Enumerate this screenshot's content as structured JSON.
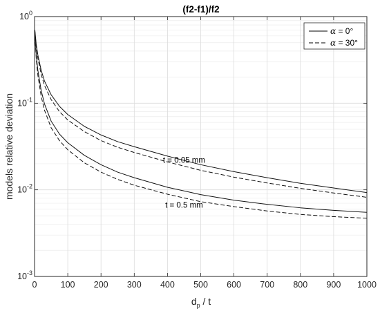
{
  "chart_data": {
    "type": "line",
    "title": "(f2-f1)/f2",
    "xlabel": {
      "main": "d",
      "sub": "p",
      "rest": " / t"
    },
    "ylabel": "models relative deviation",
    "xlim": [
      0,
      1000
    ],
    "ylim": [
      0.001,
      1
    ],
    "yscale": "log",
    "grid": true,
    "minor_grid_y": true,
    "x_ticks": [
      0,
      100,
      200,
      300,
      400,
      500,
      600,
      700,
      800,
      900,
      1000
    ],
    "y_ticks": [
      {
        "value": 1,
        "base": "10",
        "exp": "0"
      },
      {
        "value": 0.1,
        "base": "10",
        "exp": "-1"
      },
      {
        "value": 0.01,
        "base": "10",
        "exp": "-2"
      },
      {
        "value": 0.001,
        "base": "10",
        "exp": "-3"
      }
    ],
    "legend": {
      "location": "top-right",
      "entries": [
        {
          "symbol": "α",
          "text": " = 0°",
          "style": "solid"
        },
        {
          "symbol": "α",
          "text": " = 30°",
          "style": "dashed"
        }
      ]
    },
    "annotations": [
      {
        "text": "t = 0.05 mm",
        "x": 450,
        "y": 0.0205
      },
      {
        "text": "t = 0.5 mm",
        "x": 450,
        "y": 0.0062
      }
    ],
    "series": [
      {
        "group": "t = 0.05 mm",
        "alpha": "α = 0°",
        "style": "solid",
        "x": [
          1,
          5,
          10,
          20,
          30,
          50,
          75,
          100,
          150,
          200,
          250,
          300,
          400,
          500,
          600,
          700,
          800,
          900,
          1000
        ],
        "y": [
          0.7,
          0.48,
          0.36,
          0.24,
          0.18,
          0.125,
          0.092,
          0.074,
          0.054,
          0.043,
          0.036,
          0.0315,
          0.0245,
          0.0195,
          0.0162,
          0.0138,
          0.0119,
          0.0105,
          0.0093
        ]
      },
      {
        "group": "t = 0.05 mm",
        "alpha": "α = 30°",
        "style": "dashed",
        "x": [
          1,
          5,
          10,
          20,
          30,
          50,
          75,
          100,
          150,
          200,
          250,
          300,
          400,
          500,
          600,
          700,
          800,
          900,
          1000
        ],
        "y": [
          0.68,
          0.45,
          0.33,
          0.215,
          0.16,
          0.11,
          0.08,
          0.064,
          0.047,
          0.037,
          0.031,
          0.027,
          0.021,
          0.0168,
          0.014,
          0.012,
          0.0104,
          0.0092,
          0.0082
        ]
      },
      {
        "group": "t = 0.5 mm",
        "alpha": "α = 0°",
        "style": "solid",
        "x": [
          1,
          5,
          10,
          20,
          30,
          50,
          75,
          100,
          150,
          200,
          250,
          300,
          400,
          500,
          600,
          700,
          800,
          900,
          1000
        ],
        "y": [
          0.62,
          0.36,
          0.24,
          0.14,
          0.098,
          0.062,
          0.044,
          0.035,
          0.025,
          0.0195,
          0.016,
          0.0138,
          0.0107,
          0.0088,
          0.0076,
          0.0068,
          0.0062,
          0.0058,
          0.0055
        ]
      },
      {
        "group": "t = 0.5 mm",
        "alpha": "α = 30°",
        "style": "dashed",
        "x": [
          1,
          5,
          10,
          20,
          30,
          50,
          75,
          100,
          150,
          200,
          250,
          300,
          400,
          500,
          600,
          700,
          800,
          900,
          1000
        ],
        "y": [
          0.6,
          0.33,
          0.21,
          0.12,
          0.083,
          0.052,
          0.037,
          0.029,
          0.0205,
          0.016,
          0.0132,
          0.0113,
          0.0089,
          0.0073,
          0.0064,
          0.0057,
          0.0052,
          0.0049,
          0.0047
        ]
      }
    ]
  }
}
